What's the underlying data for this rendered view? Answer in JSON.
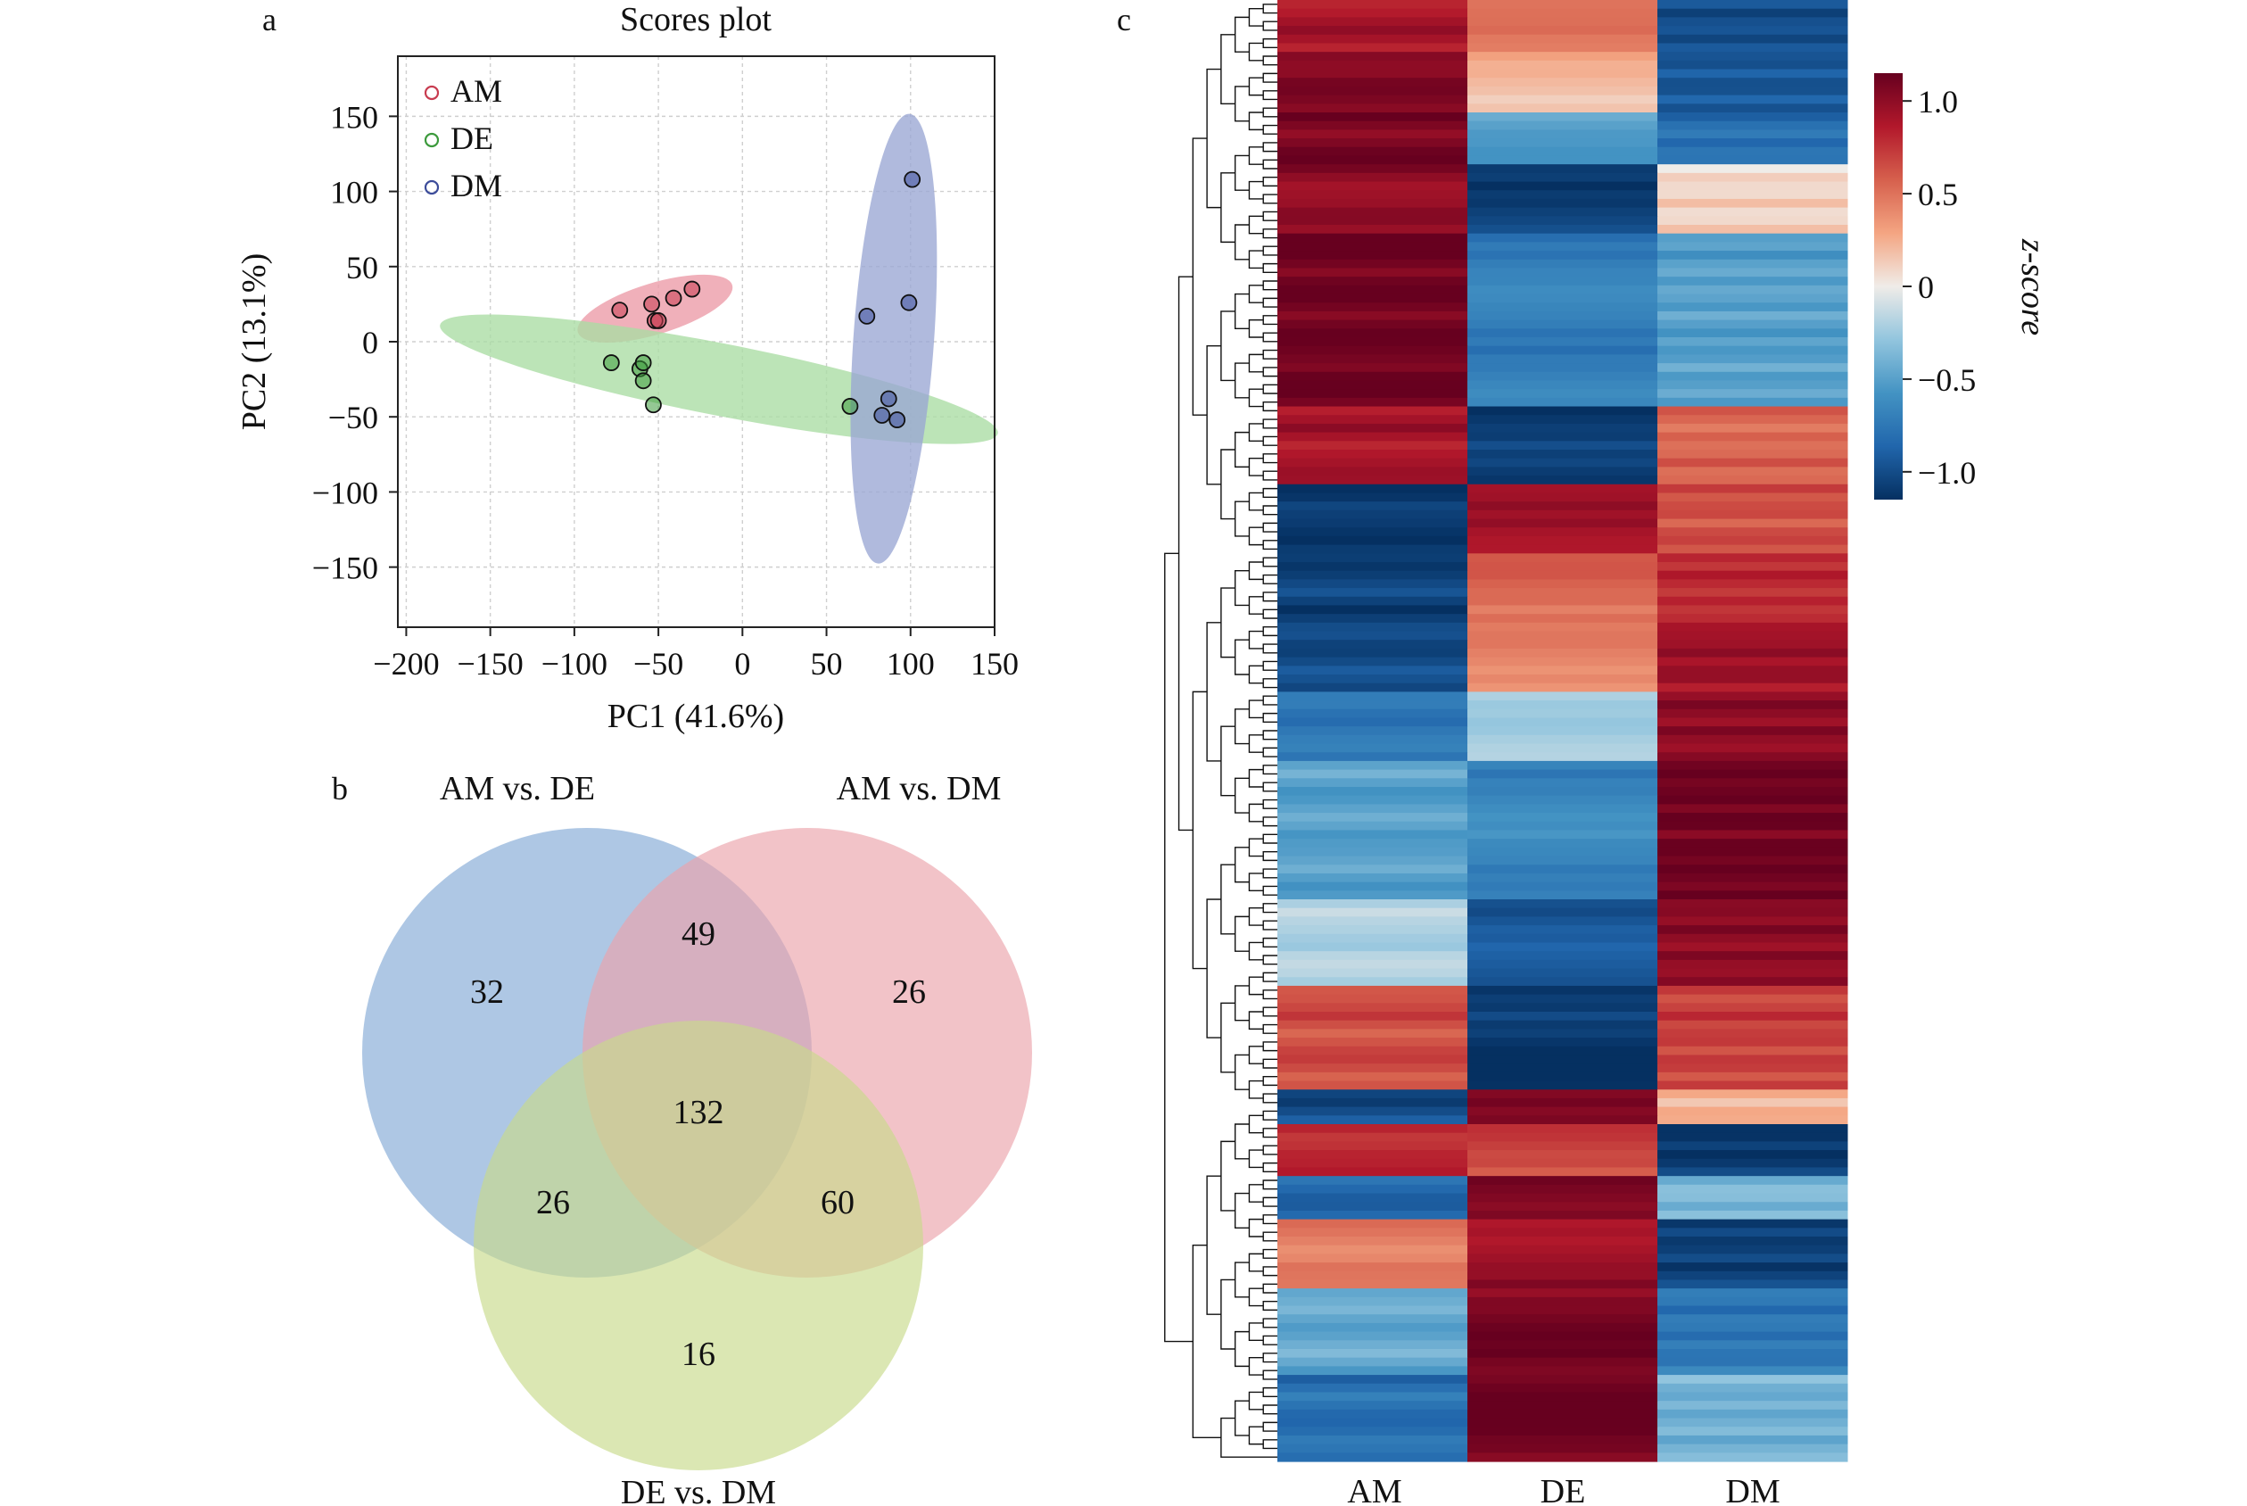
{
  "panel_labels": {
    "a": "a",
    "b": "b",
    "c": "c"
  },
  "colors": {
    "AM": "#c83c50",
    "DE": "#3c9a3c",
    "DM": "#3c4c9a",
    "AM_fill": "#ec9aa7",
    "DE_fill": "#a9dca3",
    "DM_fill": "#9aa6d4",
    "venn_A": "#8fb2d9",
    "venn_B": "#eba3aa",
    "venn_C": "#c8da8a"
  },
  "chart_data": [
    {
      "type": "scatter",
      "title": "Scores plot",
      "xlabel": "PC1 (41.6%)",
      "ylabel": "PC2 (13.1%)",
      "xlim": [
        -205,
        150
      ],
      "ylim": [
        -190,
        190
      ],
      "xticks": [
        -200,
        -150,
        -100,
        -50,
        0,
        50,
        100,
        150
      ],
      "yticks": [
        -150,
        -100,
        -50,
        0,
        50,
        100,
        150
      ],
      "xtick_labels": [
        "−200",
        "−150",
        "−100",
        "−50",
        "0",
        "50",
        "100",
        "150"
      ],
      "ytick_labels": [
        "−150",
        "−100",
        "−50",
        "0",
        "50",
        "100",
        "150"
      ],
      "grid": true,
      "legend_position": "top-left",
      "series": [
        {
          "name": "AM",
          "points": [
            [
              -73,
              21
            ],
            [
              -54,
              25
            ],
            [
              -52,
              14
            ],
            [
              -50,
              14
            ],
            [
              -41,
              29
            ],
            [
              -30,
              35
            ]
          ],
          "ellipse": {
            "cx": -52,
            "cy": 22,
            "rx": 48,
            "ry": 17,
            "angle_deg": 17
          }
        },
        {
          "name": "DE",
          "points": [
            [
              -78,
              -14
            ],
            [
              -61,
              -18
            ],
            [
              -59,
              -14
            ],
            [
              -59,
              -26
            ],
            [
              -53,
              -42
            ],
            [
              64,
              -43
            ]
          ],
          "ellipse": {
            "cx": -14,
            "cy": -25,
            "rx": 169,
            "ry": 24,
            "angle_deg": -11
          }
        },
        {
          "name": "DM",
          "points": [
            [
              74,
              17
            ],
            [
              87,
              -38
            ],
            [
              83,
              -49
            ],
            [
              92,
              -52
            ],
            [
              99,
              26
            ],
            [
              101,
              108
            ]
          ],
          "ellipse": {
            "cx": 90,
            "cy": 2,
            "rx": 24,
            "ry": 150,
            "angle_deg": -4
          }
        }
      ]
    },
    {
      "type": "venn",
      "sets": [
        "AM vs. DE",
        "AM vs. DM",
        "DE vs. DM"
      ],
      "regions": {
        "A_only": 32,
        "B_only": 26,
        "C_only": 16,
        "AB": 49,
        "AC": 26,
        "BC": 60,
        "ABC": 132
      }
    },
    {
      "type": "heatmap",
      "columns": [
        "AM",
        "DE",
        "DM"
      ],
      "colorbar_label": "z-score",
      "colorbar_ticks": [
        1.0,
        0.5,
        0,
        -0.5,
        -1.0
      ],
      "colorbar_tick_labels": [
        "1.0",
        "0.5",
        "0",
        "−0.5",
        "−1.0"
      ],
      "vmin": -1.15,
      "vmax": 1.15,
      "blocks": [
        {
          "rows": 6,
          "values": [
            0.9,
            0.45,
            -1.0
          ]
        },
        {
          "rows": 7,
          "values": [
            1.05,
            0.2,
            -0.95
          ]
        },
        {
          "rows": 6,
          "values": [
            1.08,
            -0.5,
            -0.8
          ]
        },
        {
          "rows": 8,
          "values": [
            0.98,
            -1.05,
            0.1
          ]
        },
        {
          "rows": 20,
          "values": [
            1.12,
            -0.7,
            -0.5
          ]
        },
        {
          "rows": 9,
          "values": [
            0.9,
            -1.1,
            0.55
          ]
        },
        {
          "rows": 8,
          "values": [
            -1.1,
            0.9,
            0.65
          ]
        },
        {
          "rows": 9,
          "values": [
            -1.05,
            0.55,
            0.8
          ]
        },
        {
          "rows": 7,
          "values": [
            -1.0,
            0.45,
            0.95
          ]
        },
        {
          "rows": 8,
          "values": [
            -0.75,
            -0.2,
            1.0
          ]
        },
        {
          "rows": 16,
          "values": [
            -0.5,
            -0.65,
            1.12
          ]
        },
        {
          "rows": 10,
          "values": [
            -0.2,
            -0.95,
            1.0
          ]
        },
        {
          "rows": 12,
          "values": [
            0.65,
            -1.12,
            0.7
          ]
        },
        {
          "rows": 4,
          "values": [
            -1.0,
            1.0,
            0.25
          ]
        },
        {
          "rows": 6,
          "values": [
            0.8,
            0.7,
            -1.1
          ]
        },
        {
          "rows": 5,
          "values": [
            -0.85,
            1.1,
            -0.35
          ]
        },
        {
          "rows": 8,
          "values": [
            0.45,
            0.95,
            -1.05
          ]
        },
        {
          "rows": 10,
          "values": [
            -0.45,
            1.08,
            -0.75
          ]
        },
        {
          "rows": 10,
          "values": [
            -0.8,
            1.12,
            -0.4
          ]
        }
      ]
    }
  ]
}
